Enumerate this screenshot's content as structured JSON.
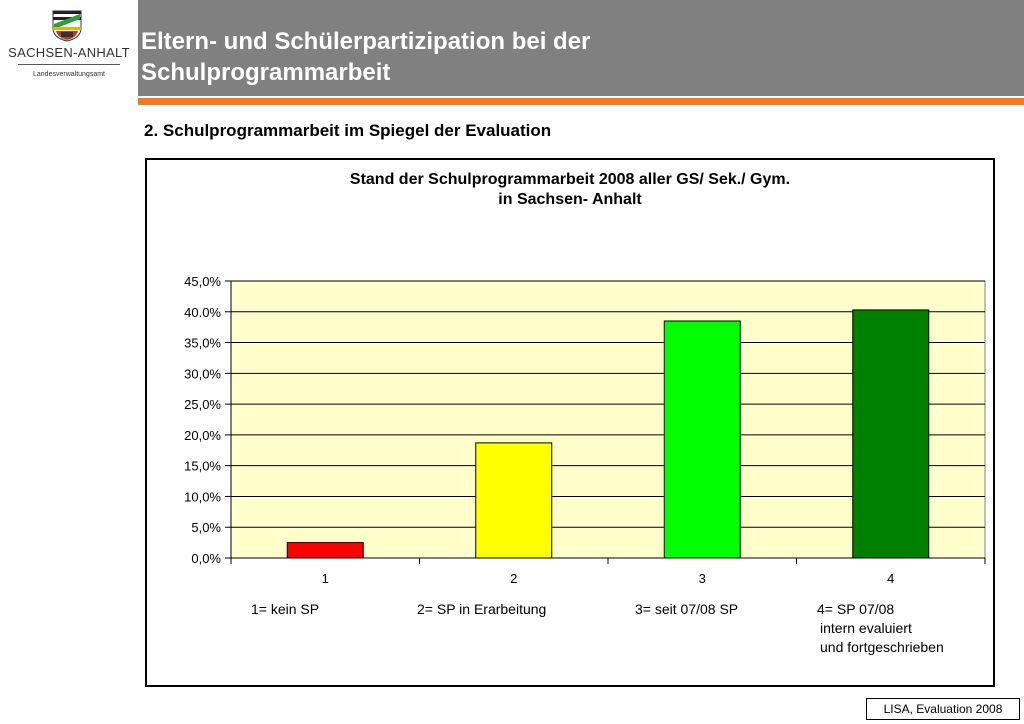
{
  "logo": {
    "name": "SACHSEN-ANHALT",
    "subtitle": "Landesverwaltungsamt"
  },
  "header": {
    "title_line1": "Eltern- und Schülerpartizipation bei der",
    "title_line2": "Schulprogrammarbeit"
  },
  "subtitle": "2. Schulprogrammarbeit im Spiegel der Evaluation",
  "footer": "LISA, Evaluation 2008",
  "colors": {
    "header_bg": "#808080",
    "accent": "#f47920",
    "plot_bg": "#ffffcc",
    "bars": [
      "#ff0000",
      "#ffff00",
      "#00ff00",
      "#008000"
    ]
  },
  "chart_data": {
    "type": "bar",
    "title_line1": "Stand der Schulprogrammarbeit 2008 aller GS/ Sek./ Gym.",
    "title_line2": "in Sachsen- Anhalt",
    "categories": [
      "1",
      "2",
      "3",
      "4"
    ],
    "values": [
      2.5,
      18.7,
      38.5,
      40.3
    ],
    "ylim": [
      0,
      45
    ],
    "yticks": [
      "0,0%",
      "5,0%",
      "10,0%",
      "15,0%",
      "20,0%",
      "25,0%",
      "30,0%",
      "35,0%",
      "40.0%",
      "45,0%"
    ],
    "grid": true,
    "legend": [
      "1= kein SP",
      "2= SP in Erarbeitung",
      "3= seit 07/08 SP",
      "4= SP 07/08",
      "intern evaluiert",
      "und fortgeschrieben"
    ]
  }
}
